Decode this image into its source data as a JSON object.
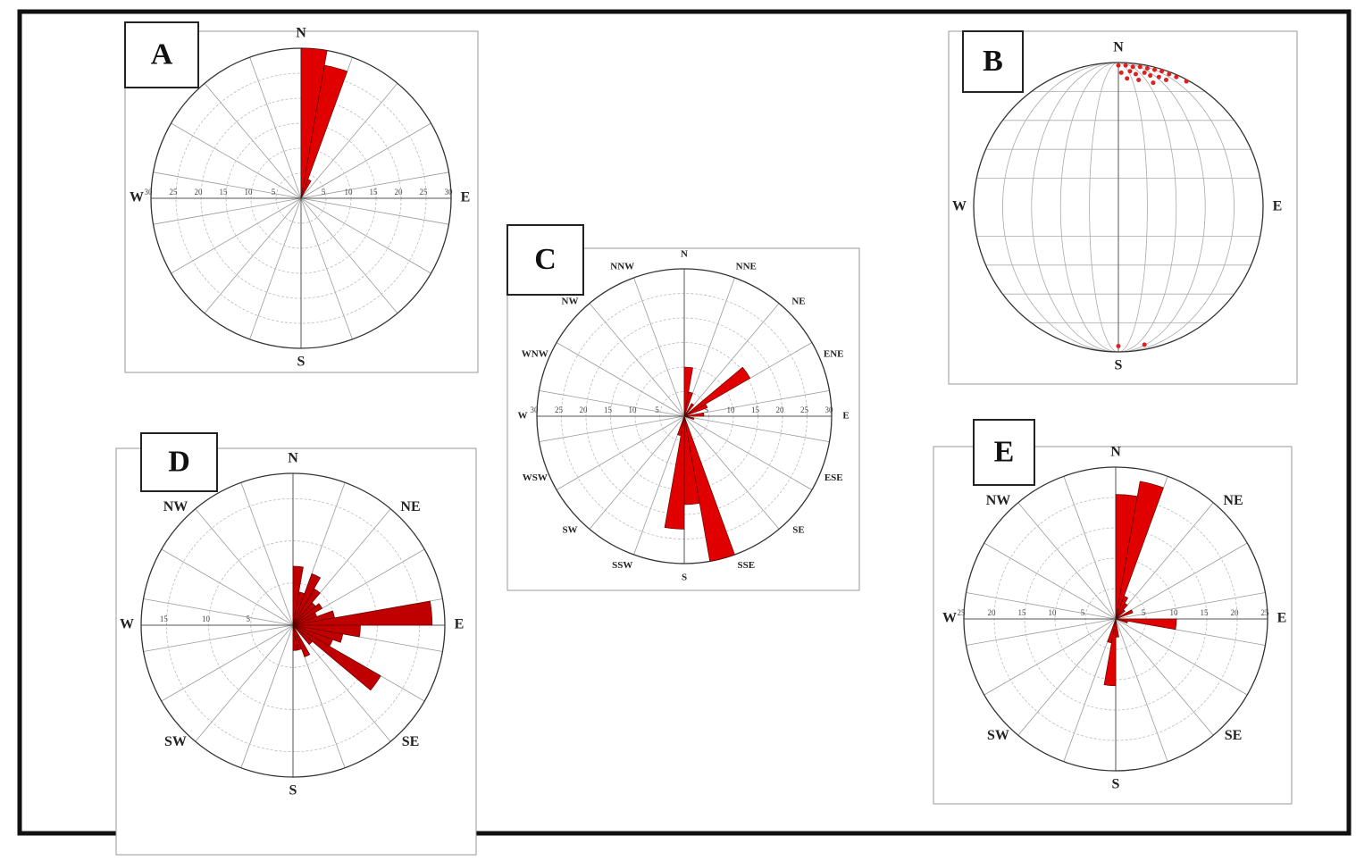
{
  "chart_data": [
    {
      "type": "rose",
      "panel": "A",
      "rlim": [
        0,
        30
      ],
      "rticks": [
        5,
        10,
        15,
        20,
        25,
        30
      ],
      "angle_ticks": [
        {
          "value": 0,
          "label": "N"
        },
        {
          "value": 90,
          "label": "E"
        },
        {
          "value": 180,
          "label": "S"
        },
        {
          "value": 270,
          "label": "W"
        }
      ],
      "bin_width": 10,
      "x": [
        0,
        10,
        20
      ],
      "values": [
        30,
        27,
        4
      ],
      "color": "#e00000"
    },
    {
      "type": "stereonet",
      "panel": "B",
      "xlim": [
        -1,
        1
      ],
      "ylim": [
        -1,
        1
      ],
      "angle_ticks": [
        {
          "value": 0,
          "label": "N"
        },
        {
          "value": 90,
          "label": "E"
        },
        {
          "value": 180,
          "label": "S"
        },
        {
          "value": 270,
          "label": "W"
        }
      ],
      "x": [
        0.0,
        0.05,
        0.1,
        0.15,
        0.2,
        0.25,
        0.3,
        0.35,
        0.4,
        0.47,
        0.02,
        0.08,
        0.12,
        0.18,
        0.22,
        0.28,
        0.33,
        0.06,
        0.14,
        0.24,
        0.0,
        0.18
      ],
      "y": [
        0.98,
        0.98,
        0.97,
        0.97,
        0.96,
        0.95,
        0.94,
        0.92,
        0.9,
        0.87,
        0.93,
        0.94,
        0.92,
        0.93,
        0.91,
        0.9,
        0.88,
        0.89,
        0.88,
        0.86,
        -0.96,
        -0.95
      ],
      "color": "#e02020"
    },
    {
      "type": "rose",
      "panel": "C",
      "rlim": [
        0,
        30
      ],
      "rticks": [
        5,
        10,
        15,
        20,
        25,
        30
      ],
      "angle_ticks": [
        {
          "value": 0,
          "label": "N"
        },
        {
          "value": 22.5,
          "label": "NNE"
        },
        {
          "value": 45,
          "label": "NE"
        },
        {
          "value": 67.5,
          "label": "ENE"
        },
        {
          "value": 90,
          "label": "E"
        },
        {
          "value": 112.5,
          "label": "ESE"
        },
        {
          "value": 135,
          "label": "SE"
        },
        {
          "value": 157.5,
          "label": "SSE"
        },
        {
          "value": 180,
          "label": "S"
        },
        {
          "value": 202.5,
          "label": "SSW"
        },
        {
          "value": 225,
          "label": "SW"
        },
        {
          "value": 247.5,
          "label": "WSW"
        },
        {
          "value": 270,
          "label": "W"
        },
        {
          "value": 292.5,
          "label": "WNW"
        },
        {
          "value": 315,
          "label": "NW"
        },
        {
          "value": 337.5,
          "label": "NNW"
        }
      ],
      "bin_width": 10,
      "x": [
        0,
        10,
        30,
        50,
        60,
        80,
        100,
        160,
        170,
        180,
        190
      ],
      "values": [
        10,
        5,
        3,
        15.5,
        5,
        4,
        2,
        30,
        18,
        23,
        4
      ],
      "color": "#e00000"
    },
    {
      "type": "rose",
      "panel": "D",
      "rlim": [
        0,
        18
      ],
      "rticks": [
        5,
        10,
        15
      ],
      "angle_ticks": [
        {
          "value": 0,
          "label": "N"
        },
        {
          "value": 45,
          "label": "NE"
        },
        {
          "value": 90,
          "label": "E"
        },
        {
          "value": 135,
          "label": "SE"
        },
        {
          "value": 180,
          "label": "S"
        },
        {
          "value": 225,
          "label": "SW"
        },
        {
          "value": 270,
          "label": "W"
        },
        {
          "value": 315,
          "label": "NW"
        }
      ],
      "bin_width": 10,
      "x": [
        0,
        10,
        20,
        30,
        40,
        50,
        60,
        70,
        80,
        90,
        100,
        110,
        120,
        130,
        150,
        160,
        170
      ],
      "values": [
        7,
        4,
        6.5,
        5,
        3.5,
        4,
        3,
        5,
        16.5,
        8,
        6,
        5,
        12,
        3,
        4,
        3,
        3
      ],
      "color": "#c00000"
    },
    {
      "type": "rose",
      "panel": "E",
      "rlim": [
        0,
        25
      ],
      "rticks": [
        5,
        10,
        15,
        20,
        25
      ],
      "angle_ticks": [
        {
          "value": 0,
          "label": "N"
        },
        {
          "value": 45,
          "label": "NE"
        },
        {
          "value": 90,
          "label": "E"
        },
        {
          "value": 135,
          "label": "SE"
        },
        {
          "value": 180,
          "label": "S"
        },
        {
          "value": 225,
          "label": "SW"
        },
        {
          "value": 270,
          "label": "W"
        },
        {
          "value": 315,
          "label": "NW"
        }
      ],
      "bin_width": 10,
      "x": [
        0,
        10,
        20,
        30,
        40,
        60,
        90,
        100,
        170,
        180,
        190
      ],
      "values": [
        20.5,
        23,
        4,
        3,
        2,
        3,
        10,
        2,
        3,
        11,
        4
      ],
      "color": "#e00000"
    }
  ]
}
